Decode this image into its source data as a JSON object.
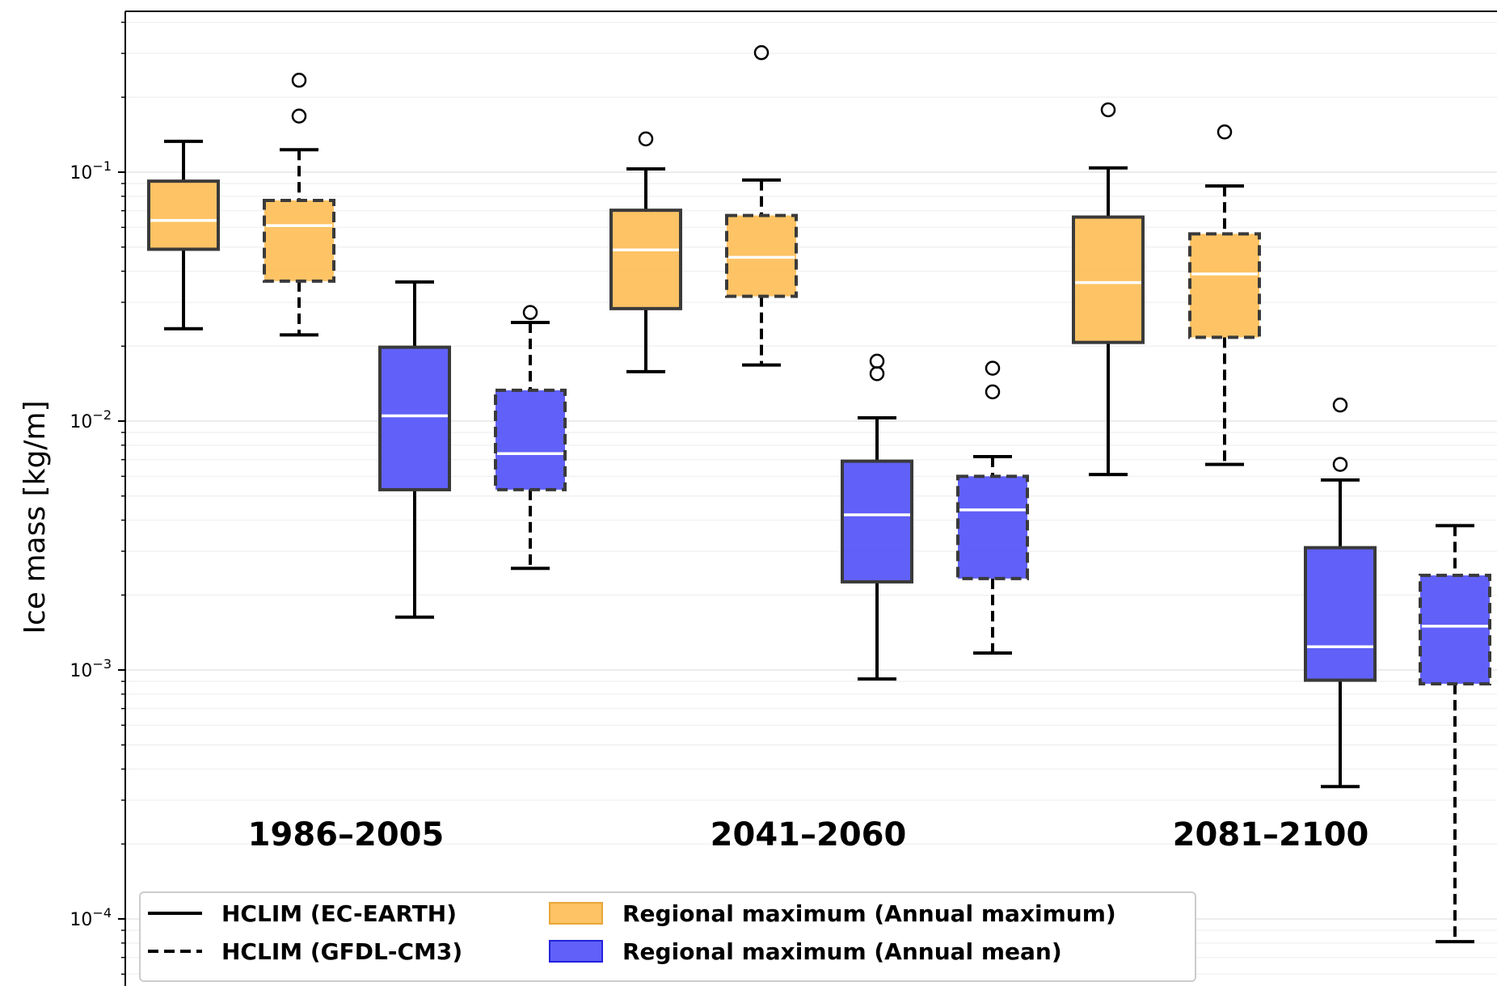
{
  "chart_data": {
    "type": "boxplot",
    "ylabel": "Ice mass [kg/m]",
    "yscale": "log",
    "ylim": [
      8e-05,
      0.45
    ],
    "yticks": [
      {
        "value": 0.1,
        "base": "10",
        "exp": "−1"
      },
      {
        "value": 0.01,
        "base": "10",
        "exp": "−2"
      },
      {
        "value": 0.001,
        "base": "10",
        "exp": "−3"
      },
      {
        "value": 0.0001,
        "base": "10",
        "exp": "−4"
      }
    ],
    "grid": "horizontal, major and minor",
    "periods": [
      "1986–2005",
      "2041–2060",
      "2081–2100"
    ],
    "legend": {
      "placement": "lower-left",
      "entries": [
        {
          "label": "HCLIM (EC-EARTH)",
          "line": "solid"
        },
        {
          "label": "HCLIM (GFDL-CM3)",
          "line": "dashed"
        },
        {
          "label": "Regional maximum (Annual maximum)",
          "color": "#FDB94A"
        },
        {
          "label": "Regional maximum (Annual mean)",
          "color": "#5050F8"
        }
      ]
    },
    "colors": {
      "annual_maximum": "#FDB94A",
      "annual_mean": "#5050F8",
      "median": "#ffffff",
      "edge": "#3a3a3a"
    },
    "boxes": [
      {
        "period": "1986–2005",
        "model": "HCLIM (EC-EARTH)",
        "variable": "Annual maximum",
        "whislo": 0.0235,
        "q1": 0.049,
        "median": 0.064,
        "q3": 0.092,
        "whishi": 0.133,
        "fliers": []
      },
      {
        "period": "1986–2005",
        "model": "HCLIM (GFDL-CM3)",
        "variable": "Annual maximum",
        "whislo": 0.0222,
        "q1": 0.0365,
        "median": 0.061,
        "q3": 0.077,
        "whishi": 0.123,
        "fliers": [
          0.234,
          0.168
        ]
      },
      {
        "period": "1986–2005",
        "model": "HCLIM (EC-EARTH)",
        "variable": "Annual mean",
        "whislo": 0.00163,
        "q1": 0.0053,
        "median": 0.0105,
        "q3": 0.0198,
        "whishi": 0.0362,
        "fliers": []
      },
      {
        "period": "1986–2005",
        "model": "HCLIM (GFDL-CM3)",
        "variable": "Annual mean",
        "whislo": 0.00256,
        "q1": 0.0053,
        "median": 0.0074,
        "q3": 0.0133,
        "whishi": 0.0249,
        "fliers": [
          0.0273
        ]
      },
      {
        "period": "2041–2060",
        "model": "HCLIM (EC-EARTH)",
        "variable": "Annual maximum",
        "whislo": 0.0158,
        "q1": 0.0283,
        "median": 0.0487,
        "q3": 0.0703,
        "whishi": 0.103,
        "fliers": [
          0.136
        ]
      },
      {
        "period": "2041–2060",
        "model": "HCLIM (GFDL-CM3)",
        "variable": "Annual maximum",
        "whislo": 0.0168,
        "q1": 0.0317,
        "median": 0.0455,
        "q3": 0.067,
        "whishi": 0.093,
        "fliers": [
          0.302
        ]
      },
      {
        "period": "2041–2060",
        "model": "HCLIM (EC-EARTH)",
        "variable": "Annual mean",
        "whislo": 0.00092,
        "q1": 0.00226,
        "median": 0.0042,
        "q3": 0.0069,
        "whishi": 0.0103,
        "fliers": [
          0.0174,
          0.0155
        ]
      },
      {
        "period": "2041–2060",
        "model": "HCLIM (GFDL-CM3)",
        "variable": "Annual mean",
        "whislo": 0.00117,
        "q1": 0.00233,
        "median": 0.0044,
        "q3": 0.006,
        "whishi": 0.0072,
        "fliers": [
          0.0163,
          0.0131
        ]
      },
      {
        "period": "2081–2100",
        "model": "HCLIM (EC-EARTH)",
        "variable": "Annual maximum",
        "whislo": 0.0061,
        "q1": 0.0207,
        "median": 0.036,
        "q3": 0.066,
        "whishi": 0.104,
        "fliers": [
          0.178
        ]
      },
      {
        "period": "2081–2100",
        "model": "HCLIM (GFDL-CM3)",
        "variable": "Annual maximum",
        "whislo": 0.0067,
        "q1": 0.0217,
        "median": 0.039,
        "q3": 0.0565,
        "whishi": 0.088,
        "fliers": [
          0.145
        ]
      },
      {
        "period": "2081–2100",
        "model": "HCLIM (EC-EARTH)",
        "variable": "Annual mean",
        "whislo": 0.00034,
        "q1": 0.00091,
        "median": 0.00124,
        "q3": 0.0031,
        "whishi": 0.0058,
        "fliers": [
          0.0116,
          0.0067
        ]
      },
      {
        "period": "2081–2100",
        "model": "HCLIM (GFDL-CM3)",
        "variable": "Annual mean",
        "whislo": 8.1e-05,
        "q1": 0.00088,
        "median": 0.0015,
        "q3": 0.0024,
        "whishi": 0.0038,
        "fliers": []
      }
    ]
  }
}
